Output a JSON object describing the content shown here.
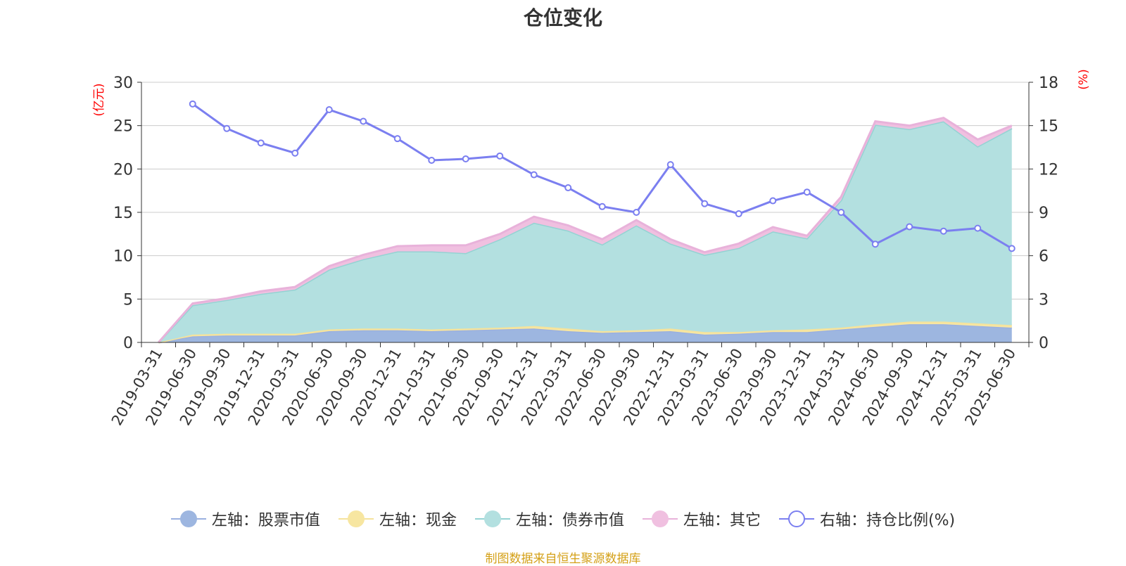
{
  "title": "仓位变化",
  "source_note": "制图数据来自恒生聚源数据库",
  "chart_data": {
    "type": "area",
    "title": "仓位变化",
    "categories": [
      "2019-03-31",
      "2019-06-30",
      "2019-09-30",
      "2019-12-31",
      "2020-03-31",
      "2020-06-30",
      "2020-09-30",
      "2020-12-31",
      "2021-03-31",
      "2021-06-30",
      "2021-09-30",
      "2021-12-31",
      "2022-03-31",
      "2022-06-30",
      "2022-09-30",
      "2022-12-31",
      "2023-03-31",
      "2023-06-30",
      "2023-09-30",
      "2023-12-31",
      "2024-03-31",
      "2024-06-30",
      "2024-09-30",
      "2024-12-31",
      "2025-03-31",
      "2025-06-30"
    ],
    "left_axis": {
      "label": "(亿元)",
      "ylim": [
        0,
        30
      ],
      "ticks": [
        0,
        5,
        10,
        15,
        20,
        25,
        30
      ]
    },
    "right_axis": {
      "label": "(%)",
      "ylim": [
        0,
        18
      ],
      "ticks": [
        0,
        3,
        6,
        9,
        12,
        15,
        18
      ]
    },
    "grid": true,
    "legend_position": "bottom",
    "series": [
      {
        "name": "左轴：股票市值",
        "axis": "left",
        "stacked": true,
        "color": "#9db6e0",
        "line_color": "#9ab0e0",
        "values": [
          0.0,
          0.7,
          0.8,
          0.8,
          0.8,
          1.3,
          1.4,
          1.4,
          1.3,
          1.4,
          1.5,
          1.6,
          1.3,
          1.1,
          1.2,
          1.3,
          0.9,
          1.0,
          1.2,
          1.2,
          1.5,
          1.8,
          2.1,
          2.1,
          1.9,
          1.7
        ]
      },
      {
        "name": "左轴：现金",
        "axis": "left",
        "stacked": true,
        "color": "#f7e6a1",
        "line_color": "#f5e29b",
        "values": [
          0.0,
          0.2,
          0.2,
          0.2,
          0.2,
          0.2,
          0.2,
          0.2,
          0.2,
          0.2,
          0.2,
          0.3,
          0.3,
          0.2,
          0.2,
          0.3,
          0.3,
          0.2,
          0.2,
          0.3,
          0.2,
          0.3,
          0.3,
          0.3,
          0.3,
          0.3
        ]
      },
      {
        "name": "左轴：债券市值",
        "axis": "left",
        "stacked": true,
        "color": "#b3e0e0",
        "line_color": "#94d3d3",
        "values": [
          0.0,
          3.4,
          3.9,
          4.6,
          5.1,
          6.9,
          8.0,
          8.9,
          9.0,
          8.7,
          10.2,
          11.9,
          11.3,
          10.0,
          12.1,
          9.8,
          8.9,
          9.7,
          11.4,
          10.5,
          14.7,
          23.0,
          22.2,
          23.1,
          20.4,
          22.7
        ]
      },
      {
        "name": "左轴：其它",
        "axis": "left",
        "stacked": true,
        "color": "#f0c0e0",
        "line_color": "#e8b2da",
        "values": [
          0.0,
          0.2,
          0.2,
          0.3,
          0.3,
          0.4,
          0.5,
          0.6,
          0.7,
          0.9,
          0.6,
          0.7,
          0.6,
          0.6,
          0.6,
          0.5,
          0.3,
          0.5,
          0.5,
          0.3,
          0.4,
          0.4,
          0.4,
          0.4,
          0.8,
          0.3
        ]
      },
      {
        "name": "右轴：持仓比例(%)",
        "axis": "right",
        "type": "line",
        "color": "#7b7ff0",
        "values": [
          null,
          16.5,
          14.8,
          13.8,
          13.1,
          16.1,
          15.3,
          14.1,
          12.6,
          12.7,
          12.9,
          11.6,
          10.7,
          9.4,
          9.0,
          12.3,
          9.6,
          8.9,
          9.8,
          10.4,
          9.0,
          6.8,
          8.0,
          7.7,
          7.9,
          6.5
        ]
      }
    ]
  }
}
